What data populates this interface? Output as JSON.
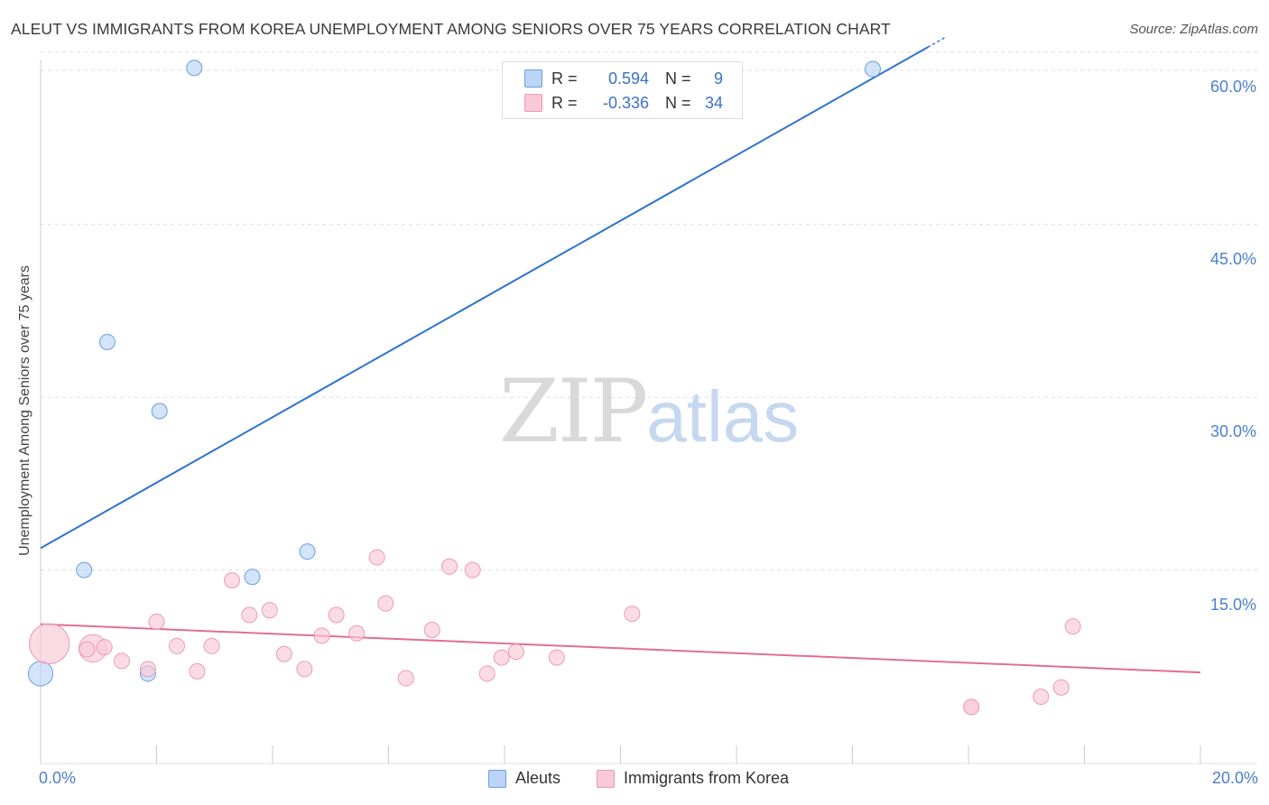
{
  "title": "ALEUT VS IMMIGRANTS FROM KOREA UNEMPLOYMENT AMONG SENIORS OVER 75 YEARS CORRELATION CHART",
  "source": "Source: ZipAtlas.com",
  "watermark": {
    "zip": "ZIP",
    "atlas": "atlas"
  },
  "legend_top": {
    "rows": [
      {
        "r_label": "R =",
        "r_value": "0.594",
        "n_label": "N =",
        "n_value": "9"
      },
      {
        "r_label": "R =",
        "r_value": "-0.336",
        "n_label": "N =",
        "n_value": "34"
      }
    ]
  },
  "chart_data": {
    "type": "scatter",
    "title": "ALEUT VS IMMIGRANTS FROM KOREA UNEMPLOYMENT AMONG SENIORS OVER 75 YEARS CORRELATION CHART",
    "xlabel": "",
    "ylabel": "Unemployment Among Seniors over 75 years",
    "xlim": [
      0,
      20
    ],
    "ylim": [
      0,
      62
    ],
    "x_tick_labels": [
      "0.0%",
      "20.0%"
    ],
    "y_tick_labels": [
      "15.0%",
      "30.0%",
      "45.0%",
      "60.0%"
    ],
    "y_ticks": [
      15,
      30,
      45,
      60
    ],
    "x_minor_ticks": [
      0,
      2,
      4,
      6,
      8,
      10,
      12,
      14,
      16,
      18,
      20
    ],
    "grid": true,
    "legend_position": "bottom-center",
    "series": [
      {
        "name": "Aleuts",
        "color": "#6a9fe0",
        "fill": "#bcd4f6",
        "line_color": "#2e72d2",
        "points": [
          {
            "x": 0.0,
            "y": 6.0,
            "size": 1.6
          },
          {
            "x": 0.75,
            "y": 15.0,
            "size": 1
          },
          {
            "x": 1.15,
            "y": 34.8,
            "size": 1
          },
          {
            "x": 1.85,
            "y": 6.0,
            "size": 1
          },
          {
            "x": 2.05,
            "y": 28.8,
            "size": 1
          },
          {
            "x": 2.65,
            "y": 58.6,
            "size": 1
          },
          {
            "x": 3.65,
            "y": 14.4,
            "size": 1
          },
          {
            "x": 4.6,
            "y": 16.6,
            "size": 1
          },
          {
            "x": 14.35,
            "y": 58.5,
            "size": 1
          }
        ],
        "trend": {
          "x0": 0,
          "y0": 16.9,
          "x1": 15.3,
          "y1": 60.4
        }
      },
      {
        "name": "Immigrants from Korea",
        "color": "#ee9ab4",
        "fill": "#f9c9d7",
        "line_color": "#e0708f",
        "points": [
          {
            "x": 0.15,
            "y": 8.6,
            "size": 2.6
          },
          {
            "x": 0.9,
            "y": 8.2,
            "size": 1.8
          },
          {
            "x": 0.8,
            "y": 8.1,
            "size": 1
          },
          {
            "x": 1.1,
            "y": 8.3,
            "size": 1
          },
          {
            "x": 1.4,
            "y": 7.1,
            "size": 1
          },
          {
            "x": 1.85,
            "y": 6.4,
            "size": 1
          },
          {
            "x": 2.0,
            "y": 10.5,
            "size": 1
          },
          {
            "x": 2.35,
            "y": 8.4,
            "size": 1
          },
          {
            "x": 2.7,
            "y": 6.2,
            "size": 1
          },
          {
            "x": 2.95,
            "y": 8.4,
            "size": 1
          },
          {
            "x": 3.3,
            "y": 14.1,
            "size": 1
          },
          {
            "x": 3.6,
            "y": 11.1,
            "size": 1
          },
          {
            "x": 3.95,
            "y": 11.5,
            "size": 1
          },
          {
            "x": 4.2,
            "y": 7.7,
            "size": 1
          },
          {
            "x": 4.55,
            "y": 6.4,
            "size": 1
          },
          {
            "x": 4.85,
            "y": 9.3,
            "size": 1
          },
          {
            "x": 5.1,
            "y": 11.1,
            "size": 1
          },
          {
            "x": 5.45,
            "y": 9.5,
            "size": 1
          },
          {
            "x": 5.8,
            "y": 16.1,
            "size": 1
          },
          {
            "x": 5.95,
            "y": 12.1,
            "size": 1
          },
          {
            "x": 6.3,
            "y": 5.6,
            "size": 1
          },
          {
            "x": 6.75,
            "y": 9.8,
            "size": 1
          },
          {
            "x": 7.05,
            "y": 15.3,
            "size": 1
          },
          {
            "x": 7.45,
            "y": 15.0,
            "size": 1
          },
          {
            "x": 7.7,
            "y": 6.0,
            "size": 1
          },
          {
            "x": 7.95,
            "y": 7.4,
            "size": 1
          },
          {
            "x": 8.2,
            "y": 7.9,
            "size": 1
          },
          {
            "x": 8.9,
            "y": 7.4,
            "size": 1
          },
          {
            "x": 10.2,
            "y": 11.2,
            "size": 1
          },
          {
            "x": 16.05,
            "y": 3.1,
            "size": 1
          },
          {
            "x": 16.05,
            "y": 3.1,
            "size": 1
          },
          {
            "x": 17.25,
            "y": 4.0,
            "size": 1
          },
          {
            "x": 17.6,
            "y": 4.8,
            "size": 1
          },
          {
            "x": 17.8,
            "y": 10.1,
            "size": 1
          }
        ],
        "trend": {
          "x0": 0,
          "y0": 10.3,
          "x1": 20,
          "y1": 6.1
        }
      }
    ]
  }
}
